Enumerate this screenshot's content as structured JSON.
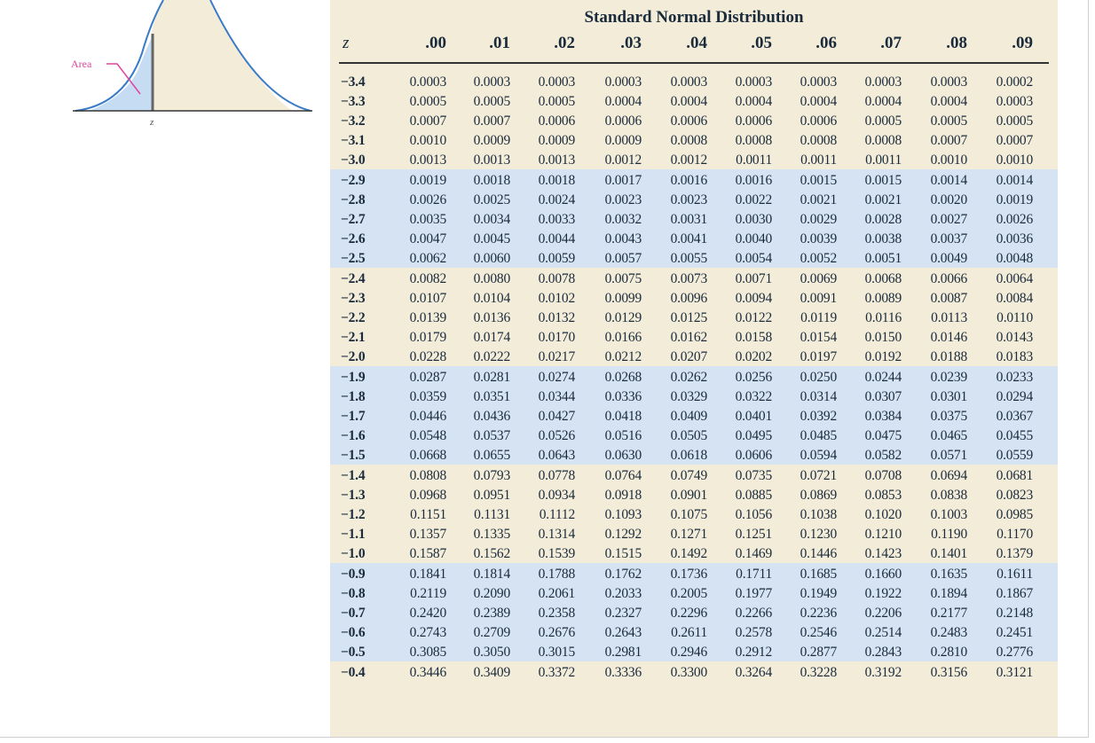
{
  "figure": {
    "area_label": "Area",
    "z_label": "z",
    "colors": {
      "curve": "#3a7bc8",
      "shade": "#c6dcf2",
      "label": "#e0449e",
      "bell_fill": "#f3ecd8"
    }
  },
  "table": {
    "title": "Standard Normal Distribution",
    "columns": [
      "z",
      ".00",
      ".01",
      ".02",
      ".03",
      ".04",
      ".05",
      ".06",
      ".07",
      ".08",
      ".09"
    ],
    "rows": [
      {
        "z": "−3.4",
        "values": [
          "0.0003",
          "0.0003",
          "0.0003",
          "0.0003",
          "0.0003",
          "0.0003",
          "0.0003",
          "0.0003",
          "0.0003",
          "0.0002"
        ]
      },
      {
        "z": "−3.3",
        "values": [
          "0.0005",
          "0.0005",
          "0.0005",
          "0.0004",
          "0.0004",
          "0.0004",
          "0.0004",
          "0.0004",
          "0.0004",
          "0.0003"
        ]
      },
      {
        "z": "−3.2",
        "values": [
          "0.0007",
          "0.0007",
          "0.0006",
          "0.0006",
          "0.0006",
          "0.0006",
          "0.0006",
          "0.0005",
          "0.0005",
          "0.0005"
        ]
      },
      {
        "z": "−3.1",
        "values": [
          "0.0010",
          "0.0009",
          "0.0009",
          "0.0009",
          "0.0008",
          "0.0008",
          "0.0008",
          "0.0008",
          "0.0007",
          "0.0007"
        ]
      },
      {
        "z": "−3.0",
        "values": [
          "0.0013",
          "0.0013",
          "0.0013",
          "0.0012",
          "0.0012",
          "0.0011",
          "0.0011",
          "0.0011",
          "0.0010",
          "0.0010"
        ]
      },
      {
        "z": "−2.9",
        "values": [
          "0.0019",
          "0.0018",
          "0.0018",
          "0.0017",
          "0.0016",
          "0.0016",
          "0.0015",
          "0.0015",
          "0.0014",
          "0.0014"
        ]
      },
      {
        "z": "−2.8",
        "values": [
          "0.0026",
          "0.0025",
          "0.0024",
          "0.0023",
          "0.0023",
          "0.0022",
          "0.0021",
          "0.0021",
          "0.0020",
          "0.0019"
        ]
      },
      {
        "z": "−2.7",
        "values": [
          "0.0035",
          "0.0034",
          "0.0033",
          "0.0032",
          "0.0031",
          "0.0030",
          "0.0029",
          "0.0028",
          "0.0027",
          "0.0026"
        ]
      },
      {
        "z": "−2.6",
        "values": [
          "0.0047",
          "0.0045",
          "0.0044",
          "0.0043",
          "0.0041",
          "0.0040",
          "0.0039",
          "0.0038",
          "0.0037",
          "0.0036"
        ]
      },
      {
        "z": "−2.5",
        "values": [
          "0.0062",
          "0.0060",
          "0.0059",
          "0.0057",
          "0.0055",
          "0.0054",
          "0.0052",
          "0.0051",
          "0.0049",
          "0.0048"
        ]
      },
      {
        "z": "−2.4",
        "values": [
          "0.0082",
          "0.0080",
          "0.0078",
          "0.0075",
          "0.0073",
          "0.0071",
          "0.0069",
          "0.0068",
          "0.0066",
          "0.0064"
        ]
      },
      {
        "z": "−2.3",
        "values": [
          "0.0107",
          "0.0104",
          "0.0102",
          "0.0099",
          "0.0096",
          "0.0094",
          "0.0091",
          "0.0089",
          "0.0087",
          "0.0084"
        ]
      },
      {
        "z": "−2.2",
        "values": [
          "0.0139",
          "0.0136",
          "0.0132",
          "0.0129",
          "0.0125",
          "0.0122",
          "0.0119",
          "0.0116",
          "0.0113",
          "0.0110"
        ]
      },
      {
        "z": "−2.1",
        "values": [
          "0.0179",
          "0.0174",
          "0.0170",
          "0.0166",
          "0.0162",
          "0.0158",
          "0.0154",
          "0.0150",
          "0.0146",
          "0.0143"
        ]
      },
      {
        "z": "−2.0",
        "values": [
          "0.0228",
          "0.0222",
          "0.0217",
          "0.0212",
          "0.0207",
          "0.0202",
          "0.0197",
          "0.0192",
          "0.0188",
          "0.0183"
        ]
      },
      {
        "z": "−1.9",
        "values": [
          "0.0287",
          "0.0281",
          "0.0274",
          "0.0268",
          "0.0262",
          "0.0256",
          "0.0250",
          "0.0244",
          "0.0239",
          "0.0233"
        ]
      },
      {
        "z": "−1.8",
        "values": [
          "0.0359",
          "0.0351",
          "0.0344",
          "0.0336",
          "0.0329",
          "0.0322",
          "0.0314",
          "0.0307",
          "0.0301",
          "0.0294"
        ]
      },
      {
        "z": "−1.7",
        "values": [
          "0.0446",
          "0.0436",
          "0.0427",
          "0.0418",
          "0.0409",
          "0.0401",
          "0.0392",
          "0.0384",
          "0.0375",
          "0.0367"
        ]
      },
      {
        "z": "−1.6",
        "values": [
          "0.0548",
          "0.0537",
          "0.0526",
          "0.0516",
          "0.0505",
          "0.0495",
          "0.0485",
          "0.0475",
          "0.0465",
          "0.0455"
        ]
      },
      {
        "z": "−1.5",
        "values": [
          "0.0668",
          "0.0655",
          "0.0643",
          "0.0630",
          "0.0618",
          "0.0606",
          "0.0594",
          "0.0582",
          "0.0571",
          "0.0559"
        ]
      },
      {
        "z": "−1.4",
        "values": [
          "0.0808",
          "0.0793",
          "0.0778",
          "0.0764",
          "0.0749",
          "0.0735",
          "0.0721",
          "0.0708",
          "0.0694",
          "0.0681"
        ]
      },
      {
        "z": "−1.3",
        "values": [
          "0.0968",
          "0.0951",
          "0.0934",
          "0.0918",
          "0.0901",
          "0.0885",
          "0.0869",
          "0.0853",
          "0.0838",
          "0.0823"
        ]
      },
      {
        "z": "−1.2",
        "values": [
          "0.1151",
          "0.1131",
          "0.1112",
          "0.1093",
          "0.1075",
          "0.1056",
          "0.1038",
          "0.1020",
          "0.1003",
          "0.0985"
        ]
      },
      {
        "z": "−1.1",
        "values": [
          "0.1357",
          "0.1335",
          "0.1314",
          "0.1292",
          "0.1271",
          "0.1251",
          "0.1230",
          "0.1210",
          "0.1190",
          "0.1170"
        ]
      },
      {
        "z": "−1.0",
        "values": [
          "0.1587",
          "0.1562",
          "0.1539",
          "0.1515",
          "0.1492",
          "0.1469",
          "0.1446",
          "0.1423",
          "0.1401",
          "0.1379"
        ]
      },
      {
        "z": "−0.9",
        "values": [
          "0.1841",
          "0.1814",
          "0.1788",
          "0.1762",
          "0.1736",
          "0.1711",
          "0.1685",
          "0.1660",
          "0.1635",
          "0.1611"
        ]
      },
      {
        "z": "−0.8",
        "values": [
          "0.2119",
          "0.2090",
          "0.2061",
          "0.2033",
          "0.2005",
          "0.1977",
          "0.1949",
          "0.1922",
          "0.1894",
          "0.1867"
        ]
      },
      {
        "z": "−0.7",
        "values": [
          "0.2420",
          "0.2389",
          "0.2358",
          "0.2327",
          "0.2296",
          "0.2266",
          "0.2236",
          "0.2206",
          "0.2177",
          "0.2148"
        ]
      },
      {
        "z": "−0.6",
        "values": [
          "0.2743",
          "0.2709",
          "0.2676",
          "0.2643",
          "0.2611",
          "0.2578",
          "0.2546",
          "0.2514",
          "0.2483",
          "0.2451"
        ]
      },
      {
        "z": "−0.5",
        "values": [
          "0.3085",
          "0.3050",
          "0.3015",
          "0.2981",
          "0.2946",
          "0.2912",
          "0.2877",
          "0.2843",
          "0.2810",
          "0.2776"
        ]
      },
      {
        "z": "−0.4",
        "values": [
          "0.3446",
          "0.3409",
          "0.3372",
          "0.3336",
          "0.3300",
          "0.3264",
          "0.3228",
          "0.3192",
          "0.3156",
          "0.3121"
        ]
      }
    ]
  }
}
